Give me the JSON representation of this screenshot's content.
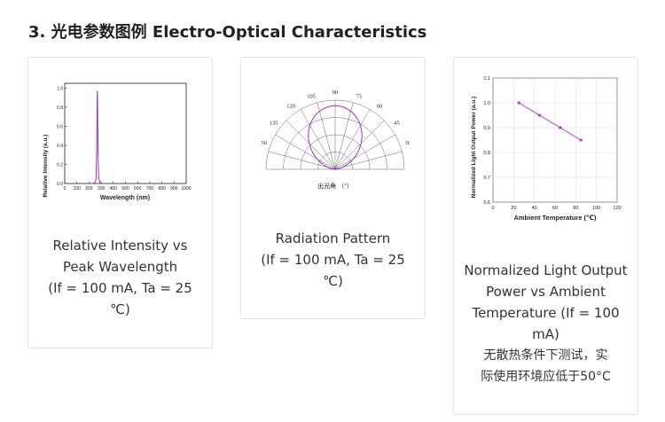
{
  "section": {
    "title": "3. 光电参数图例 Electro-Optical Characteristics"
  },
  "cards": [
    {
      "caption": [
        "Relative Intensity vs",
        "Peak Wavelength",
        "(If = 100 mA, Ta = 25",
        "℃)"
      ],
      "chart_data": {
        "type": "line",
        "xlabel": "Wavelength (nm)",
        "ylabel": "Relative Intensity (a.u.)",
        "x_ticks": [
          "0",
          "100",
          "200",
          "300",
          "400",
          "500",
          "600",
          "700",
          "800",
          "900",
          "1000"
        ],
        "y_ticks": [
          "0.0",
          "0.2",
          "0.4",
          "0.6",
          "0.8",
          "1.0"
        ],
        "xlim": [
          0,
          1000
        ],
        "ylim": [
          0,
          1.05
        ],
        "series": [
          {
            "x": [
              230,
              250,
              258,
              263,
              266,
              268,
              270,
              272,
              275,
              280,
              290,
              310
            ],
            "y": [
              0.0,
              0.01,
              0.05,
              0.35,
              0.75,
              0.97,
              0.92,
              0.6,
              0.25,
              0.06,
              0.01,
              0.0
            ]
          }
        ],
        "color": "#9b30c8"
      }
    },
    {
      "caption": [
        "Radiation Pattern",
        "(If = 100 mA, Ta = 25",
        "℃)"
      ],
      "chart_data": {
        "type": "polar",
        "xlabel": "出光角 （°）",
        "angle_labels": [
          "90",
          "75",
          "60",
          "45",
          "30",
          "15",
          "0",
          "105",
          "120",
          "135",
          "150"
        ],
        "color": "#9b30c8"
      }
    },
    {
      "caption": [
        "Normalized Light Output",
        "Power vs Ambient",
        "Temperature (If = 100",
        "mA)",
        "无散热条件下测试，实",
        "际使用环境应低于50°C"
      ],
      "chart_data": {
        "type": "line",
        "xlabel": "Ambient Temperature (℃)",
        "ylabel": "Normalized Light Output Power (a.u.)",
        "x_ticks": [
          "0",
          "20",
          "40",
          "60",
          "80",
          "100",
          "120"
        ],
        "y_ticks": [
          "0.6",
          "0.7",
          "0.8",
          "0.9",
          "1.0",
          "1.1"
        ],
        "xlim": [
          0,
          120
        ],
        "ylim": [
          0.6,
          1.1
        ],
        "series": [
          {
            "x": [
              25,
              45,
              65,
              85
            ],
            "y": [
              1.0,
              0.95,
              0.9,
              0.85
            ]
          }
        ],
        "color": "#b03ad0"
      }
    }
  ]
}
